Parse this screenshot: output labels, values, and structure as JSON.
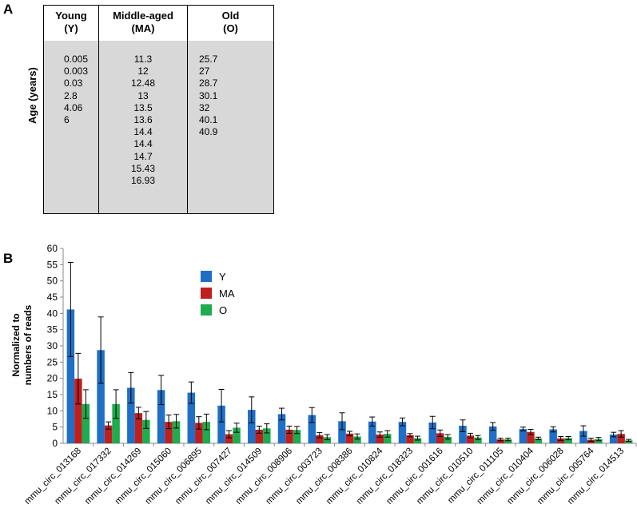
{
  "panel_a": {
    "label": "A",
    "ylabel": "Age (years)",
    "columns": [
      {
        "title": "Young",
        "abbr": "(Y)",
        "values": [
          "0.005",
          "0.003",
          "0.03",
          "2.8",
          "4.06",
          "6"
        ]
      },
      {
        "title": "Middle-aged",
        "abbr": "(MA)",
        "values": [
          "11.3",
          "12",
          "12.48",
          "13",
          "13.5",
          "13.6",
          "14.4",
          "14.4",
          "14.7",
          "15.43",
          "16.93"
        ]
      },
      {
        "title": "Old",
        "abbr": "(O)",
        "values": [
          "25.7",
          "27",
          "28.7",
          "30.1",
          "32",
          "40.1",
          "40.9"
        ]
      }
    ]
  },
  "panel_b": {
    "label": "B"
  },
  "chart_data": {
    "type": "bar",
    "title": "",
    "xlabel": "",
    "ylabel": "Normalized to numbers of reads",
    "ylabel_lines": [
      "Normalized to",
      "numbers of reads"
    ],
    "ylim": [
      0,
      60
    ],
    "yticks": [
      "0",
      "5",
      "10",
      "15",
      "20",
      "25",
      "30",
      "35",
      "40",
      "45",
      "50",
      "55",
      "60"
    ],
    "grid": false,
    "legend": "top-center",
    "categories": [
      "mmu_circ_013168",
      "mmu_circ_017332",
      "mmu_circ_014269",
      "mmu_circ_015060",
      "mmu_circ_006895",
      "mmu_circ_007427",
      "mmu_circ_014509",
      "mmu_circ_008906",
      "mmu_circ_003723",
      "mmu_circ_008386",
      "mmu_circ_010824",
      "mmu_circ_018323",
      "mmu_circ_001616",
      "mmu_circ_010510",
      "mmu_circ_011105",
      "mmu_circ_010404",
      "mmu_circ_006028",
      "mmu_circ_005764",
      "mmu_circ_014513"
    ],
    "series": [
      {
        "name": "Y",
        "color": "#1f6fc6",
        "values": [
          41.2,
          28.7,
          17.1,
          16.4,
          15.6,
          11.6,
          10.3,
          9.0,
          8.7,
          6.8,
          6.7,
          6.6,
          6.4,
          5.4,
          5.2,
          4.4,
          4.3,
          3.8,
          2.7
        ],
        "errors": [
          14.5,
          10.2,
          4.7,
          4.5,
          3.3,
          5.0,
          4.0,
          1.8,
          2.3,
          2.6,
          1.4,
          1.2,
          1.9,
          1.8,
          1.2,
          0.6,
          0.8,
          1.6,
          0.7
        ]
      },
      {
        "name": "MA",
        "color": "#c01f1f",
        "values": [
          19.9,
          5.5,
          9.3,
          6.6,
          6.3,
          2.8,
          4.2,
          4.2,
          2.5,
          3.0,
          2.7,
          2.5,
          3.1,
          2.4,
          1.2,
          3.5,
          1.5,
          1.1,
          2.9
        ],
        "errors": [
          7.8,
          1.1,
          1.8,
          2.1,
          1.9,
          1.1,
          1.1,
          1.1,
          0.8,
          0.7,
          0.8,
          0.5,
          1.0,
          0.7,
          0.4,
          0.8,
          0.6,
          0.5,
          1.0
        ]
      },
      {
        "name": "O",
        "color": "#1fab4f",
        "values": [
          12.1,
          12.1,
          7.2,
          6.8,
          6.6,
          4.8,
          4.6,
          4.1,
          1.9,
          2.1,
          2.9,
          1.6,
          2.0,
          1.8,
          1.2,
          1.5,
          1.6,
          1.3,
          0.9
        ],
        "errors": [
          4.4,
          4.4,
          2.6,
          2.1,
          2.4,
          1.4,
          1.4,
          1.1,
          0.8,
          0.8,
          1.0,
          0.6,
          0.7,
          0.6,
          0.4,
          0.4,
          0.5,
          0.5,
          0.3
        ]
      }
    ]
  }
}
